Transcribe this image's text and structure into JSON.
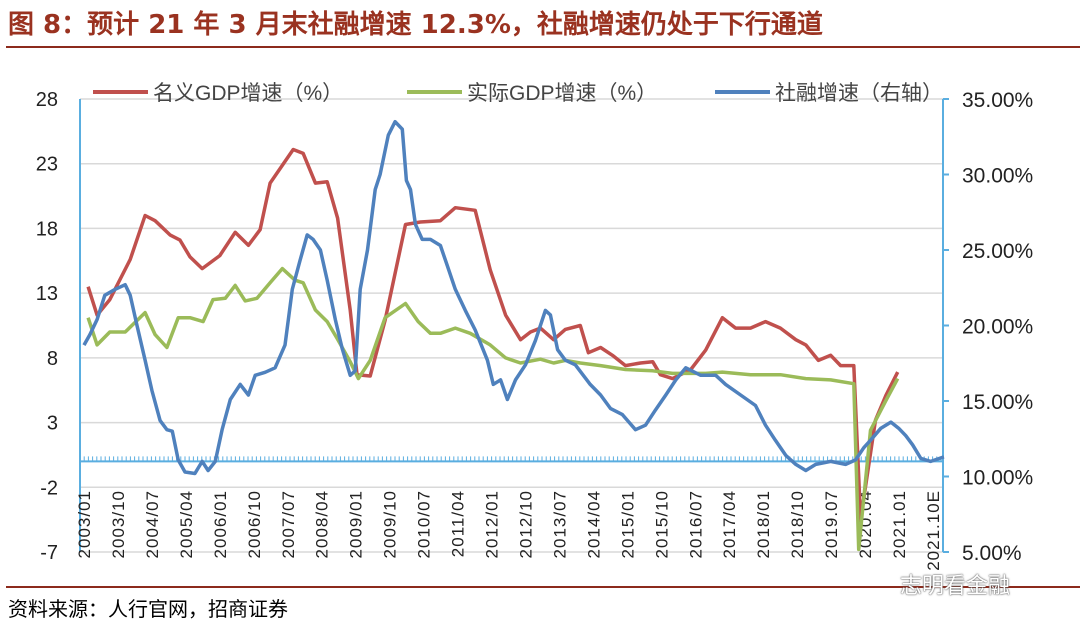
{
  "title": "图 8：预计 21 年 3 月末社融增速 12.3%，社融增速仍处于下行通道",
  "source": "资料来源：人行官网，招商证券",
  "watermark": "志明看金融",
  "colors": {
    "nominal": "#c0504d",
    "real": "#9bbb59",
    "tsf": "#4f81bd",
    "title": "#9a3220",
    "axis": "#5aaee0"
  },
  "chart_data": {
    "type": "line",
    "title": "图 8：预计 21 年 3 月末社融增速 12.3%，社融增速仍处于下行通道",
    "xlabel": "",
    "ylabel": "",
    "xlim": [
      2003.0,
      2021.9
    ],
    "ylim_left": [
      -7,
      28
    ],
    "ylim_right": [
      5,
      35
    ],
    "left_ticks": [
      "28",
      "23",
      "18",
      "13",
      "8",
      "3",
      "-2",
      "-7"
    ],
    "left_tick_values": [
      28,
      23,
      18,
      13,
      8,
      3,
      -2,
      -7
    ],
    "right_ticks": [
      "35.00%",
      "30.00%",
      "25.00%",
      "20.00%",
      "15.00%",
      "10.00%",
      "5.00%"
    ],
    "right_tick_values": [
      35,
      30,
      25,
      20,
      15,
      10,
      5
    ],
    "x_ticks": [
      "2003/01",
      "2003/10",
      "2004/07",
      "2005/04",
      "2006/01",
      "2006/10",
      "2007/07",
      "2008/04",
      "2009/01",
      "2009/10",
      "2010/07",
      "2011/04",
      "2012/01",
      "2012/10",
      "2013/07",
      "2014/04",
      "2015/01",
      "2015/10",
      "2016/07",
      "2017/04",
      "2018/01",
      "2018/10",
      "2019.07",
      "2020.04",
      "2021.01",
      "2021.10E"
    ],
    "grid": true,
    "legend_position": "top",
    "series": [
      {
        "name": "名义GDP增速（%）",
        "axis": "left",
        "color": "#c0504d",
        "points": [
          [
            2003.09,
            13.5
          ],
          [
            2003.29,
            11.3
          ],
          [
            2003.57,
            12.5
          ],
          [
            2004.02,
            15.6
          ],
          [
            2004.35,
            19.0
          ],
          [
            2004.57,
            18.6
          ],
          [
            2004.9,
            17.5
          ],
          [
            2005.12,
            17.1
          ],
          [
            2005.34,
            15.8
          ],
          [
            2005.61,
            14.9
          ],
          [
            2006.0,
            15.9
          ],
          [
            2006.34,
            17.7
          ],
          [
            2006.63,
            16.7
          ],
          [
            2006.89,
            17.9
          ],
          [
            2007.11,
            21.5
          ],
          [
            2007.62,
            24.1
          ],
          [
            2007.84,
            23.8
          ],
          [
            2008.11,
            21.5
          ],
          [
            2008.37,
            21.6
          ],
          [
            2008.6,
            18.8
          ],
          [
            2008.88,
            11.7
          ],
          [
            2009.03,
            6.7
          ],
          [
            2009.32,
            6.6
          ],
          [
            2009.65,
            10.9
          ],
          [
            2010.1,
            18.3
          ],
          [
            2010.43,
            18.5
          ],
          [
            2010.87,
            18.6
          ],
          [
            2011.2,
            19.6
          ],
          [
            2011.64,
            19.4
          ],
          [
            2011.97,
            14.8
          ],
          [
            2012.31,
            11.3
          ],
          [
            2012.64,
            9.4
          ],
          [
            2012.86,
            10.0
          ],
          [
            2013.08,
            10.3
          ],
          [
            2013.37,
            9.4
          ],
          [
            2013.63,
            10.2
          ],
          [
            2013.96,
            10.5
          ],
          [
            2014.14,
            8.4
          ],
          [
            2014.41,
            8.8
          ],
          [
            2014.67,
            8.2
          ],
          [
            2014.96,
            7.4
          ],
          [
            2015.29,
            7.6
          ],
          [
            2015.56,
            7.7
          ],
          [
            2015.73,
            6.7
          ],
          [
            2016.0,
            6.4
          ],
          [
            2016.4,
            7.1
          ],
          [
            2016.73,
            8.6
          ],
          [
            2017.1,
            11.1
          ],
          [
            2017.39,
            10.3
          ],
          [
            2017.72,
            10.3
          ],
          [
            2018.05,
            10.8
          ],
          [
            2018.38,
            10.3
          ],
          [
            2018.72,
            9.4
          ],
          [
            2018.94,
            9.0
          ],
          [
            2019.22,
            7.8
          ],
          [
            2019.49,
            8.2
          ],
          [
            2019.71,
            7.4
          ],
          [
            2020.0,
            7.4
          ],
          [
            2020.15,
            -4.5
          ],
          [
            2020.48,
            3.2
          ],
          [
            2020.71,
            5.1
          ],
          [
            2020.97,
            6.9
          ]
        ]
      },
      {
        "name": "实际GDP增速（%）",
        "axis": "left",
        "color": "#9bbb59",
        "points": [
          [
            2003.09,
            11.1
          ],
          [
            2003.29,
            9.0
          ],
          [
            2003.57,
            10.0
          ],
          [
            2003.91,
            10.0
          ],
          [
            2004.35,
            11.5
          ],
          [
            2004.57,
            9.8
          ],
          [
            2004.83,
            8.8
          ],
          [
            2005.08,
            11.1
          ],
          [
            2005.34,
            11.1
          ],
          [
            2005.63,
            10.8
          ],
          [
            2005.85,
            12.5
          ],
          [
            2006.12,
            12.6
          ],
          [
            2006.34,
            13.6
          ],
          [
            2006.56,
            12.4
          ],
          [
            2006.82,
            12.6
          ],
          [
            2007.11,
            13.8
          ],
          [
            2007.38,
            14.9
          ],
          [
            2007.66,
            14.0
          ],
          [
            2007.84,
            13.8
          ],
          [
            2008.11,
            11.7
          ],
          [
            2008.37,
            10.8
          ],
          [
            2008.59,
            9.5
          ],
          [
            2008.88,
            7.7
          ],
          [
            2009.06,
            6.4
          ],
          [
            2009.32,
            7.8
          ],
          [
            2009.65,
            11.1
          ],
          [
            2010.1,
            12.2
          ],
          [
            2010.38,
            10.8
          ],
          [
            2010.65,
            9.9
          ],
          [
            2010.87,
            9.9
          ],
          [
            2011.2,
            10.3
          ],
          [
            2011.53,
            9.9
          ],
          [
            2011.97,
            9.0
          ],
          [
            2012.31,
            8.0
          ],
          [
            2012.64,
            7.6
          ],
          [
            2013.08,
            7.9
          ],
          [
            2013.37,
            7.6
          ],
          [
            2013.63,
            7.8
          ],
          [
            2013.96,
            7.6
          ],
          [
            2014.41,
            7.4
          ],
          [
            2014.96,
            7.1
          ],
          [
            2015.56,
            7.0
          ],
          [
            2016.0,
            6.8
          ],
          [
            2016.73,
            6.8
          ],
          [
            2017.1,
            6.9
          ],
          [
            2017.72,
            6.7
          ],
          [
            2018.38,
            6.7
          ],
          [
            2018.94,
            6.4
          ],
          [
            2019.49,
            6.3
          ],
          [
            2020.0,
            6.0
          ],
          [
            2020.11,
            -6.8
          ],
          [
            2020.37,
            2.4
          ],
          [
            2020.71,
            4.7
          ],
          [
            2020.97,
            6.4
          ]
        ]
      },
      {
        "name": "社融增速（右轴）",
        "axis": "right",
        "color": "#4f81bd",
        "points": [
          [
            2003.0,
            18.7
          ],
          [
            2003.13,
            19.4
          ],
          [
            2003.29,
            20.4
          ],
          [
            2003.46,
            22.0
          ],
          [
            2003.69,
            22.4
          ],
          [
            2003.91,
            22.7
          ],
          [
            2004.02,
            22.0
          ],
          [
            2004.17,
            20.0
          ],
          [
            2004.35,
            17.7
          ],
          [
            2004.5,
            15.7
          ],
          [
            2004.68,
            13.7
          ],
          [
            2004.83,
            13.1
          ],
          [
            2004.95,
            13.0
          ],
          [
            2005.08,
            11.1
          ],
          [
            2005.23,
            10.3
          ],
          [
            2005.45,
            10.2
          ],
          [
            2005.61,
            11.0
          ],
          [
            2005.74,
            10.4
          ],
          [
            2005.9,
            11.0
          ],
          [
            2006.05,
            13.1
          ],
          [
            2006.23,
            15.1
          ],
          [
            2006.45,
            16.1
          ],
          [
            2006.63,
            15.4
          ],
          [
            2006.78,
            16.7
          ],
          [
            2007.0,
            16.9
          ],
          [
            2007.22,
            17.2
          ],
          [
            2007.44,
            18.7
          ],
          [
            2007.6,
            22.4
          ],
          [
            2007.77,
            24.3
          ],
          [
            2007.93,
            26.0
          ],
          [
            2008.06,
            25.7
          ],
          [
            2008.22,
            25.0
          ],
          [
            2008.37,
            23.0
          ],
          [
            2008.55,
            20.4
          ],
          [
            2008.7,
            18.5
          ],
          [
            2008.88,
            16.7
          ],
          [
            2008.99,
            17.0
          ],
          [
            2009.1,
            22.4
          ],
          [
            2009.26,
            25.0
          ],
          [
            2009.43,
            29.0
          ],
          [
            2009.54,
            30.0
          ],
          [
            2009.72,
            32.6
          ],
          [
            2009.87,
            33.5
          ],
          [
            2010.03,
            33.0
          ],
          [
            2010.12,
            29.6
          ],
          [
            2010.21,
            29.0
          ],
          [
            2010.32,
            26.7
          ],
          [
            2010.47,
            25.7
          ],
          [
            2010.65,
            25.7
          ],
          [
            2010.87,
            25.3
          ],
          [
            2011.02,
            24.0
          ],
          [
            2011.2,
            22.4
          ],
          [
            2011.42,
            21.0
          ],
          [
            2011.64,
            19.7
          ],
          [
            2011.91,
            17.7
          ],
          [
            2012.04,
            16.1
          ],
          [
            2012.2,
            16.4
          ],
          [
            2012.35,
            15.1
          ],
          [
            2012.53,
            16.4
          ],
          [
            2012.75,
            17.4
          ],
          [
            2012.97,
            19.0
          ],
          [
            2013.19,
            21.0
          ],
          [
            2013.3,
            20.7
          ],
          [
            2013.46,
            18.4
          ],
          [
            2013.63,
            17.7
          ],
          [
            2013.85,
            17.4
          ],
          [
            2014.18,
            16.1
          ],
          [
            2014.41,
            15.4
          ],
          [
            2014.63,
            14.5
          ],
          [
            2014.89,
            14.1
          ],
          [
            2015.18,
            13.1
          ],
          [
            2015.4,
            13.4
          ],
          [
            2015.62,
            14.4
          ],
          [
            2015.85,
            15.4
          ],
          [
            2016.07,
            16.4
          ],
          [
            2016.29,
            17.2
          ],
          [
            2016.62,
            16.7
          ],
          [
            2016.95,
            16.7
          ],
          [
            2017.17,
            16.1
          ],
          [
            2017.5,
            15.4
          ],
          [
            2017.83,
            14.7
          ],
          [
            2018.05,
            13.4
          ],
          [
            2018.27,
            12.4
          ],
          [
            2018.5,
            11.4
          ],
          [
            2018.72,
            10.8
          ],
          [
            2018.94,
            10.4
          ],
          [
            2019.16,
            10.8
          ],
          [
            2019.49,
            11.0
          ],
          [
            2019.82,
            10.8
          ],
          [
            2020.04,
            11.1
          ],
          [
            2020.22,
            11.9
          ],
          [
            2020.37,
            12.4
          ],
          [
            2020.6,
            13.2
          ],
          [
            2020.82,
            13.6
          ],
          [
            2020.99,
            13.2
          ],
          [
            2021.15,
            12.7
          ],
          [
            2021.3,
            12.1
          ],
          [
            2021.48,
            11.2
          ],
          [
            2021.7,
            11.0
          ],
          [
            2021.99,
            11.3
          ]
        ]
      }
    ]
  }
}
